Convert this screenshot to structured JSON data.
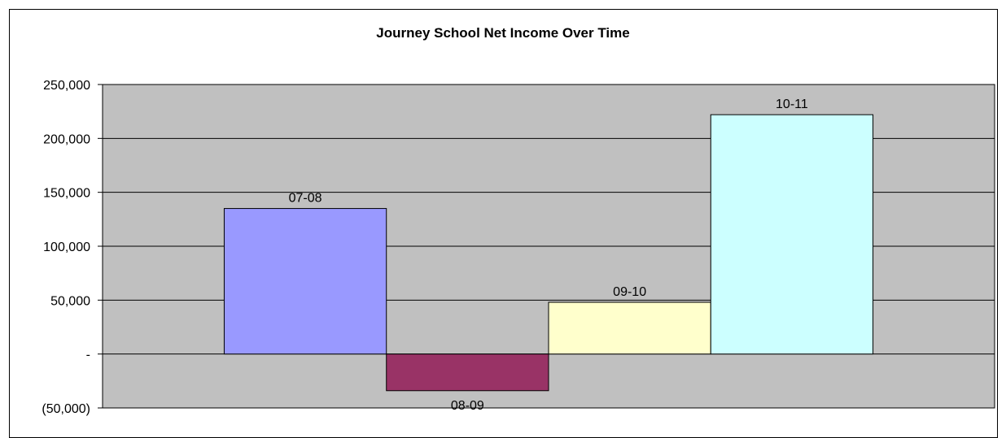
{
  "chart_data": {
    "type": "bar",
    "title": "Journey School Net Income Over Time",
    "categories": [
      "07-08",
      "08-09",
      "09-10",
      "10-11"
    ],
    "values": [
      135000,
      -34000,
      48000,
      222000
    ],
    "colors": [
      "#9999ff",
      "#993366",
      "#ffffcc",
      "#ccffff"
    ],
    "ylim": [
      -50000,
      250000
    ],
    "yticks": [
      250000,
      200000,
      150000,
      100000,
      50000,
      0,
      -50000
    ],
    "ytick_labels": [
      "250,000",
      "200,000",
      "150,000",
      "100,000",
      "50,000",
      "-",
      "(50,000)"
    ],
    "plot_background": "#c0c0c0",
    "grid": true,
    "data_labels": "category-name"
  }
}
